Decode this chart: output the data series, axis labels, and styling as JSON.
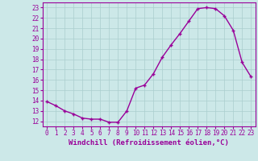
{
  "x": [
    0,
    1,
    2,
    3,
    4,
    5,
    6,
    7,
    8,
    9,
    10,
    11,
    12,
    13,
    14,
    15,
    16,
    17,
    18,
    19,
    20,
    21,
    22,
    23
  ],
  "y": [
    13.9,
    13.5,
    13.0,
    12.7,
    12.3,
    12.2,
    12.2,
    11.9,
    11.9,
    13.0,
    15.2,
    15.5,
    16.6,
    18.2,
    19.4,
    20.5,
    21.7,
    22.9,
    23.0,
    22.9,
    22.2,
    20.8,
    17.7,
    16.3
  ],
  "line_color": "#990099",
  "marker": "+",
  "marker_size": 3.5,
  "line_width": 1.0,
  "xlabel": "Windchill (Refroidissement éolien,°C)",
  "xlabel_fontsize": 6.5,
  "xlim": [
    -0.5,
    23.5
  ],
  "ylim": [
    11.5,
    23.5
  ],
  "yticks": [
    12,
    13,
    14,
    15,
    16,
    17,
    18,
    19,
    20,
    21,
    22,
    23
  ],
  "xticks": [
    0,
    1,
    2,
    3,
    4,
    5,
    6,
    7,
    8,
    9,
    10,
    11,
    12,
    13,
    14,
    15,
    16,
    17,
    18,
    19,
    20,
    21,
    22,
    23
  ],
  "bg_color": "#cce8e8",
  "grid_color": "#aacece",
  "tick_fontsize": 5.5
}
